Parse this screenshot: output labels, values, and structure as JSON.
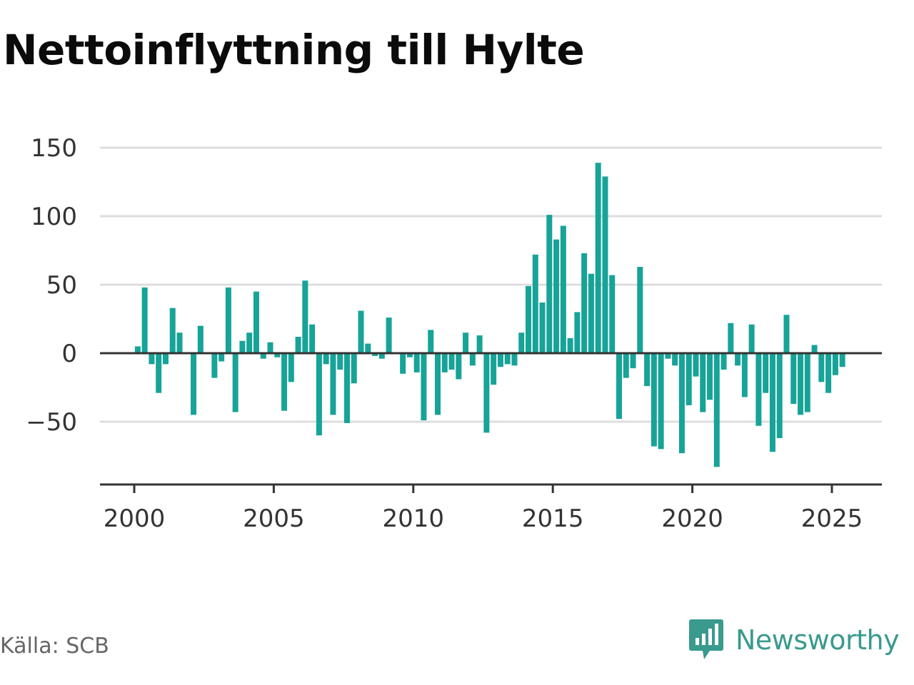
{
  "title": "Nettoinflyttning till Hylte",
  "source": "Källa: SCB",
  "brand": {
    "name": "Newsworthy",
    "icon": "newsworthy-logo-icon",
    "color": "#3a9a8e"
  },
  "colors": {
    "bar": "#17a398",
    "zero_line": "#333333",
    "grid": "#dddddd"
  },
  "chart_data": {
    "type": "bar",
    "frequency": "quarterly",
    "start": "2000 Q1",
    "x_ticks": [
      2000,
      2005,
      2010,
      2015,
      2020,
      2025
    ],
    "y_ticks": [
      150,
      100,
      50,
      0,
      -50
    ],
    "y_tick_labels": [
      "150",
      "100",
      "50",
      "0",
      "−50"
    ],
    "ylim": [
      -95,
      150
    ],
    "grid": true,
    "series": [
      {
        "values": [
          5,
          48,
          -8,
          -29,
          -8,
          33,
          15,
          0,
          -45,
          20,
          0,
          -18,
          -6,
          48,
          -43,
          9,
          15,
          45,
          -4,
          8,
          -3,
          -42,
          -21,
          12,
          53,
          21,
          -60,
          -8,
          -45,
          -12,
          -51,
          -22,
          31,
          7,
          -2,
          -4,
          26,
          0,
          -15,
          -3,
          -14,
          -49,
          17,
          -45,
          -14,
          -12,
          -19,
          15,
          -9,
          13,
          -58,
          -23,
          -10,
          -8,
          -9,
          15,
          49,
          72,
          37,
          101,
          83,
          93,
          11,
          30,
          73,
          58,
          139,
          129,
          57,
          -48,
          -18,
          -11,
          63,
          -24,
          -68,
          -70,
          -4,
          -9,
          -73,
          -38,
          -17,
          -43,
          -34,
          -83,
          -12,
          22,
          -9,
          -32,
          21,
          -53,
          -29,
          -72,
          -62,
          28,
          -37,
          -45,
          -43,
          6,
          -21,
          -29,
          -16,
          -10
        ]
      }
    ]
  }
}
